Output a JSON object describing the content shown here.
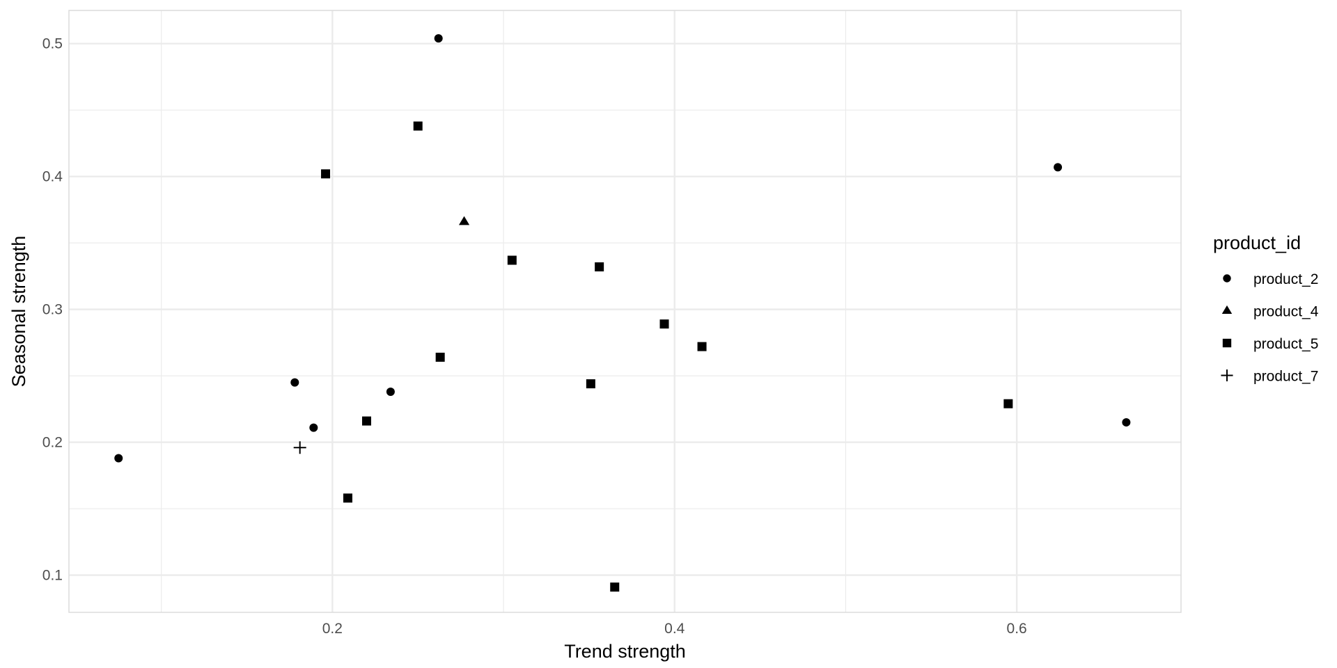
{
  "chart_data": {
    "type": "scatter",
    "xlabel": "Trend strength",
    "ylabel": "Seasonal strength",
    "xlim": [
      0.046,
      0.696
    ],
    "ylim": [
      0.072,
      0.525
    ],
    "x_ticks": [
      0.2,
      0.4,
      0.6
    ],
    "x_tick_labels": [
      "0.2",
      "0.4",
      "0.6"
    ],
    "x_minor_ticks": [
      0.1,
      0.3,
      0.5
    ],
    "y_ticks": [
      0.1,
      0.2,
      0.3,
      0.4,
      0.5
    ],
    "y_tick_labels": [
      "0.1",
      "0.2",
      "0.3",
      "0.4",
      "0.5"
    ],
    "y_minor_ticks": [
      0.15,
      0.25,
      0.35,
      0.45
    ],
    "grid": true,
    "legend": {
      "title": "product_id",
      "placement": "right"
    },
    "marker_color": "#000000",
    "grid_color": "#ebebeb",
    "series": [
      {
        "name": "product_2",
        "marker": "circle",
        "points": [
          [
            0.075,
            0.188
          ],
          [
            0.178,
            0.245
          ],
          [
            0.189,
            0.211
          ],
          [
            0.234,
            0.238
          ],
          [
            0.262,
            0.504
          ],
          [
            0.624,
            0.407
          ],
          [
            0.664,
            0.215
          ]
        ]
      },
      {
        "name": "product_4",
        "marker": "triangle",
        "points": [
          [
            0.277,
            0.366
          ]
        ]
      },
      {
        "name": "product_5",
        "marker": "square",
        "points": [
          [
            0.196,
            0.402
          ],
          [
            0.25,
            0.438
          ],
          [
            0.263,
            0.264
          ],
          [
            0.305,
            0.337
          ],
          [
            0.22,
            0.216
          ],
          [
            0.209,
            0.158
          ],
          [
            0.351,
            0.244
          ],
          [
            0.356,
            0.332
          ],
          [
            0.394,
            0.289
          ],
          [
            0.416,
            0.272
          ],
          [
            0.365,
            0.091
          ],
          [
            0.595,
            0.229
          ]
        ]
      },
      {
        "name": "product_7",
        "marker": "plus",
        "points": [
          [
            0.181,
            0.196
          ]
        ]
      }
    ]
  }
}
